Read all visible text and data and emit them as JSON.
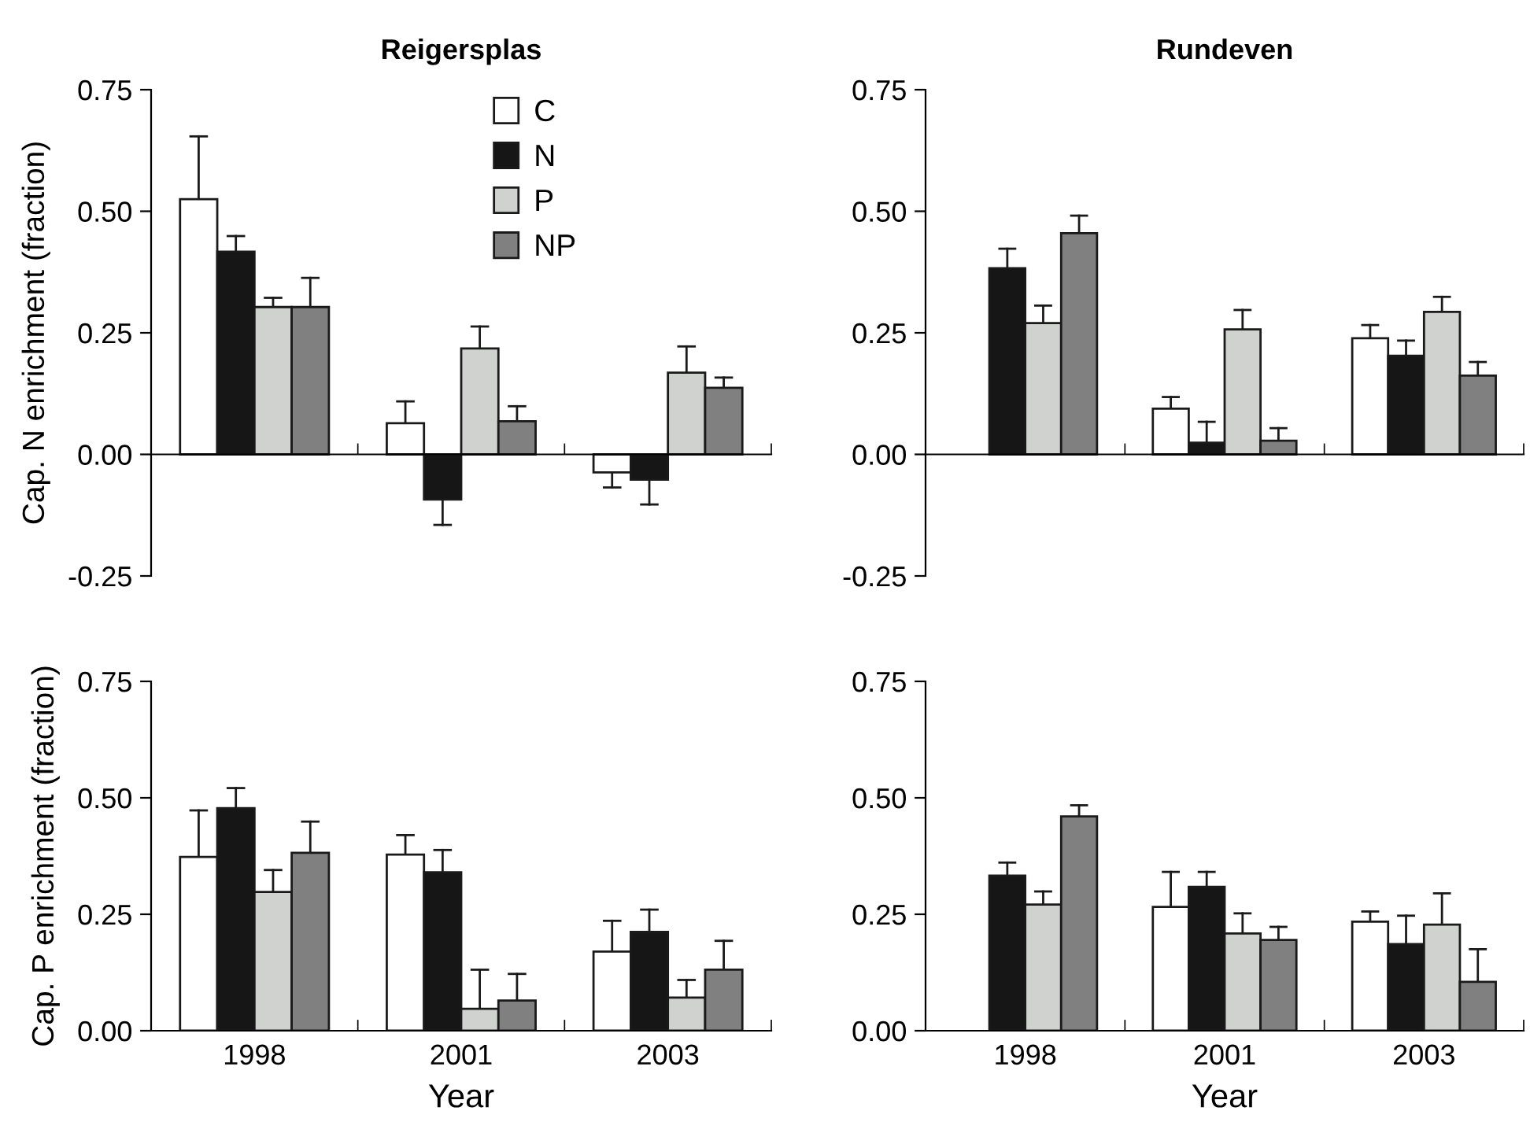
{
  "chart_data": [
    {
      "type": "bar",
      "title": "Reigersplas",
      "ylabel": "Cap. N enrichment (fraction)",
      "categories": [
        "1998",
        "2001",
        "2003"
      ],
      "ylim": [
        -0.25,
        0.75
      ],
      "yticks": [
        {
          "value": -0.25,
          "label": "-0.25"
        },
        {
          "value": 0,
          "label": "0.00"
        },
        {
          "value": 0.25,
          "label": "0.25"
        },
        {
          "value": 0.5,
          "label": "0.50"
        },
        {
          "value": 0.75,
          "label": "0.75"
        }
      ],
      "tick_labels": "y",
      "legend": "top right",
      "series": [
        {
          "name": "C",
          "color": "#ffffff",
          "values": [
            0.525,
            0.064,
            -0.037
          ],
          "errors": [
            [
              0.525,
              0.654
            ],
            [
              0.064,
              0.109
            ],
            [
              -0.068,
              -0.037
            ]
          ]
        },
        {
          "name": "N",
          "color": "#161616",
          "values": [
            0.417,
            -0.093,
            -0.052
          ],
          "errors": [
            [
              0.417,
              0.449
            ],
            [
              -0.145,
              -0.093
            ],
            [
              -0.103,
              -0.052
            ]
          ]
        },
        {
          "name": "P",
          "color": "#d0d2d0",
          "values": [
            0.303,
            0.218,
            0.168
          ],
          "errors": [
            [
              0.303,
              0.322
            ],
            [
              0.218,
              0.263
            ],
            [
              0.168,
              0.222
            ]
          ]
        },
        {
          "name": "NP",
          "color": "#808080",
          "values": [
            0.303,
            0.068,
            0.137
          ],
          "errors": [
            [
              0.303,
              0.363
            ],
            [
              0.068,
              0.099
            ],
            [
              0.137,
              0.158
            ]
          ]
        }
      ]
    },
    {
      "type": "bar",
      "title": "Rundeven",
      "categories": [
        "1998",
        "2001",
        "2003"
      ],
      "ylim": [
        -0.25,
        0.75
      ],
      "yticks": [
        {
          "value": -0.25,
          "label": "-0.25"
        },
        {
          "value": 0,
          "label": "0.00"
        },
        {
          "value": 0.25,
          "label": "0.25"
        },
        {
          "value": 0.5,
          "label": "0.50"
        },
        {
          "value": 0.75,
          "label": "0.75"
        }
      ],
      "tick_labels": "y",
      "series": [
        {
          "color": "#ffffff",
          "values": [
            null,
            0.094,
            0.239
          ],
          "errors": [
            null,
            [
              0.094,
              0.118
            ],
            [
              0.239,
              0.266
            ]
          ]
        },
        {
          "color": "#161616",
          "values": [
            0.383,
            0.024,
            0.203
          ],
          "errors": [
            [
              0.383,
              0.423
            ],
            [
              0.024,
              0.067
            ],
            [
              0.203,
              0.234
            ]
          ]
        },
        {
          "color": "#d0d2d0",
          "values": [
            0.27,
            0.257,
            0.293
          ],
          "errors": [
            [
              0.27,
              0.306
            ],
            [
              0.257,
              0.297
            ],
            [
              0.293,
              0.324
            ]
          ]
        },
        {
          "color": "#808080",
          "values": [
            0.455,
            0.028,
            0.162
          ],
          "errors": [
            [
              0.455,
              0.491
            ],
            [
              0.028,
              0.054
            ],
            [
              0.162,
              0.19
            ]
          ]
        }
      ]
    },
    {
      "type": "bar",
      "ylabel": "Cap. P enrichment (fraction)",
      "xlabel": "Year",
      "categories": [
        "1998",
        "2001",
        "2003"
      ],
      "ylim": [
        0,
        0.75
      ],
      "yticks": [
        {
          "value": 0,
          "label": "0.00"
        },
        {
          "value": 0.25,
          "label": "0.25"
        },
        {
          "value": 0.5,
          "label": "0.50"
        },
        {
          "value": 0.75,
          "label": "0.75"
        }
      ],
      "series": [
        {
          "color": "#ffffff",
          "values": [
            0.373,
            0.378,
            0.17
          ],
          "errors": [
            [
              0.373,
              0.473
            ],
            [
              0.378,
              0.42
            ],
            [
              0.17,
              0.236
            ]
          ]
        },
        {
          "color": "#161616",
          "values": [
            0.478,
            0.34,
            0.212
          ],
          "errors": [
            [
              0.478,
              0.521
            ],
            [
              0.34,
              0.388
            ],
            [
              0.212,
              0.26
            ]
          ]
        },
        {
          "color": "#d0d2d0",
          "values": [
            0.298,
            0.047,
            0.071
          ],
          "errors": [
            [
              0.298,
              0.345
            ],
            [
              0.047,
              0.131
            ],
            [
              0.071,
              0.109
            ]
          ]
        },
        {
          "color": "#808080",
          "values": [
            0.382,
            0.065,
            0.131
          ],
          "errors": [
            [
              0.382,
              0.449
            ],
            [
              0.065,
              0.122
            ],
            [
              0.131,
              0.193
            ]
          ]
        }
      ]
    },
    {
      "type": "bar",
      "xlabel": "Year",
      "categories": [
        "1998",
        "2001",
        "2003"
      ],
      "ylim": [
        0,
        0.75
      ],
      "yticks": [
        {
          "value": 0,
          "label": "0.00"
        },
        {
          "value": 0.25,
          "label": "0.25"
        },
        {
          "value": 0.5,
          "label": "0.50"
        },
        {
          "value": 0.75,
          "label": "0.75"
        }
      ],
      "series": [
        {
          "color": "#ffffff",
          "values": [
            null,
            0.266,
            0.234
          ],
          "errors": [
            null,
            [
              0.266,
              0.341
            ],
            [
              0.234,
              0.256
            ]
          ]
        },
        {
          "color": "#161616",
          "values": [
            0.333,
            0.309,
            0.186
          ],
          "errors": [
            [
              0.333,
              0.361
            ],
            [
              0.309,
              0.341
            ],
            [
              0.186,
              0.247
            ]
          ]
        },
        {
          "color": "#d0d2d0",
          "values": [
            0.271,
            0.209,
            0.228
          ],
          "errors": [
            [
              0.271,
              0.299
            ],
            [
              0.209,
              0.252
            ],
            [
              0.228,
              0.295
            ]
          ]
        },
        {
          "color": "#808080",
          "values": [
            0.46,
            0.195,
            0.105
          ],
          "errors": [
            [
              0.46,
              0.484
            ],
            [
              0.195,
              0.223
            ],
            [
              0.105,
              0.175
            ]
          ]
        }
      ]
    }
  ]
}
